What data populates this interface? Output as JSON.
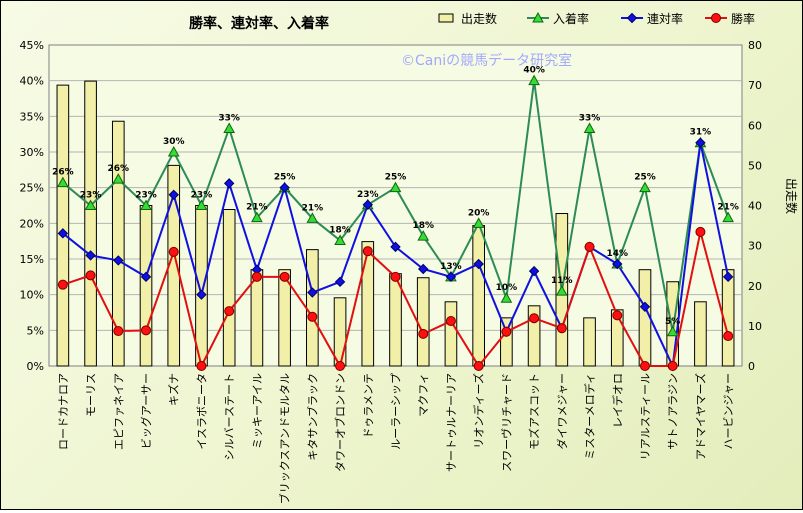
{
  "chart_data": {
    "type": "bar+line",
    "title": "勝率、連対率、入着率",
    "watermark": "©Caniの競馬データ研究室",
    "y2label": "出走数",
    "categories": [
      "ロードカナロア",
      "モーリス",
      "エピファネイア",
      "ビッグアーサー",
      "キズナ",
      "イスラボニータ",
      "シルバーステート",
      "ミッキーアイル",
      "ブリックスアンドモルタル",
      "キタサンブラック",
      "タワーオブロンドン",
      "ドゥラメンテ",
      "ルーラーシップ",
      "マクフィ",
      "サートゥルナーリア",
      "リオンディーズ",
      "スワーヴリチャード",
      "モズアスコット",
      "ダイワメジャー",
      "ミスターメロディ",
      "レイデオロ",
      "リアルスティール",
      "サトノアラジン",
      "アドマイヤマーズ",
      "ハービンジャー"
    ],
    "ylim": [
      0,
      45
    ],
    "y_ticks": [
      "0%",
      "5%",
      "10%",
      "15%",
      "20%",
      "25%",
      "30%",
      "35%",
      "40%",
      "45%"
    ],
    "y2lim": [
      0,
      80
    ],
    "y2_ticks": [
      "0",
      "10",
      "20",
      "30",
      "40",
      "50",
      "60",
      "70",
      "80"
    ],
    "legend": [
      "出走数",
      "入着率",
      "連対率",
      "勝率"
    ],
    "legend_position": "top-right",
    "grid": true,
    "series": [
      {
        "name": "出走数",
        "type": "bar",
        "axis": "right",
        "color": "#f2f0a8",
        "values": [
          70,
          71,
          61,
          40,
          50,
          40,
          39,
          24,
          24,
          29,
          17,
          31,
          23,
          22,
          16,
          35,
          12,
          15,
          38,
          12,
          14,
          24,
          21,
          16,
          24
        ]
      },
      {
        "name": "入着率",
        "type": "line",
        "axis": "left",
        "color": "#2e8b57",
        "values": [
          25.7,
          22.5,
          26.2,
          22.5,
          30.0,
          22.5,
          33.3,
          20.8,
          25.0,
          20.7,
          17.6,
          22.6,
          25.0,
          18.2,
          12.5,
          20.0,
          9.5,
          40.0,
          10.5,
          33.3,
          14.3,
          25.0,
          4.8,
          31.3,
          20.8
        ]
      },
      {
        "name": "連対率",
        "type": "line",
        "axis": "left",
        "color": "#1010e0",
        "values": [
          18.6,
          15.5,
          14.8,
          12.5,
          24.0,
          10.0,
          25.6,
          13.5,
          25.0,
          10.3,
          11.8,
          22.6,
          16.7,
          13.6,
          12.5,
          14.3,
          4.8,
          13.3,
          5.3,
          16.7,
          14.3,
          8.3,
          0.0,
          31.3,
          12.5
        ]
      },
      {
        "name": "勝率",
        "type": "line",
        "axis": "left",
        "color": "#e01010",
        "values": [
          11.4,
          12.7,
          4.9,
          5.0,
          16.0,
          0.0,
          7.7,
          12.5,
          12.5,
          6.9,
          0.0,
          16.1,
          12.5,
          4.5,
          6.3,
          0.0,
          4.8,
          6.7,
          5.3,
          16.7,
          7.1,
          0.0,
          0.0,
          18.8,
          4.2
        ]
      }
    ],
    "point_labels": {
      "series": "入着率",
      "items": [
        {
          "index": 0,
          "text": "26%"
        },
        {
          "index": 1,
          "text": "23%"
        },
        {
          "index": 2,
          "text": "26%"
        },
        {
          "index": 3,
          "text": "23%"
        },
        {
          "index": 4,
          "text": "30%"
        },
        {
          "index": 5,
          "text": "23%"
        },
        {
          "index": 6,
          "text": "33%"
        },
        {
          "index": 7,
          "text": "21%"
        },
        {
          "index": 8,
          "text": "25%"
        },
        {
          "index": 9,
          "text": "21%"
        },
        {
          "index": 10,
          "text": "18%"
        },
        {
          "index": 11,
          "text": "23%"
        },
        {
          "index": 12,
          "text": "25%"
        },
        {
          "index": 13,
          "text": "18%"
        },
        {
          "index": 14,
          "text": "13%"
        },
        {
          "index": 15,
          "text": "20%"
        },
        {
          "index": 16,
          "text": "10%"
        },
        {
          "index": 17,
          "text": "40%"
        },
        {
          "index": 18,
          "text": "11%"
        },
        {
          "index": 19,
          "text": "33%"
        },
        {
          "index": 20,
          "text": "14%"
        },
        {
          "index": 21,
          "text": "25%"
        },
        {
          "index": 22,
          "text": "5%"
        },
        {
          "index": 23,
          "text": "31%"
        },
        {
          "index": 24,
          "text": "21%"
        }
      ]
    }
  }
}
